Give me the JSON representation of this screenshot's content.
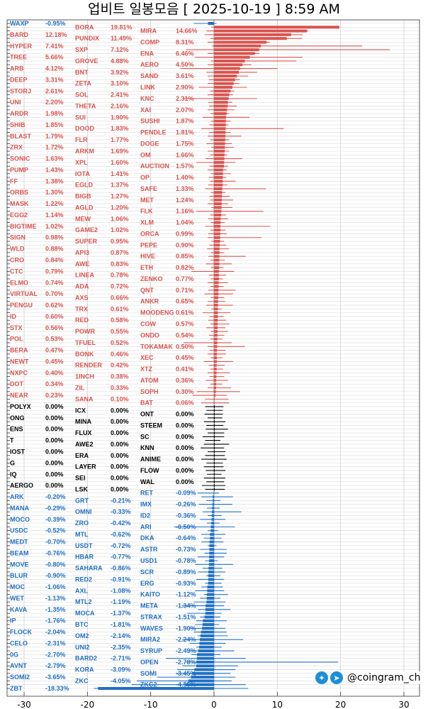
{
  "chart_data": {
    "type": "bar",
    "subtype": "horizontal-candle",
    "title": "업비트 일봉모음 [ 2025-10-19 ]  8:59 AM",
    "xlabel": "",
    "ylabel": "",
    "xlim": [
      -32,
      33
    ],
    "xticks": [
      -30,
      -20,
      -10,
      0,
      10,
      20,
      30
    ],
    "grid": true,
    "colors": {
      "up": "#d9534f",
      "flat": "#000000",
      "down": "#1f6fc5"
    },
    "columns": [
      "name",
      "change_pct",
      "low_pct",
      "high_pct"
    ],
    "rows": [
      [
        "WAXP",
        -0.95,
        -3.2,
        0.4
      ],
      [
        "BORA",
        19.81,
        -0.4,
        19.7
      ],
      [
        "MIRA",
        14.66,
        -1.2,
        14.9
      ],
      [
        "BARD",
        12.18,
        -1.5,
        14.0
      ],
      [
        "PUNDIX",
        11.49,
        -0.6,
        13.9
      ],
      [
        "COMP",
        8.31,
        -1.0,
        8.8
      ],
      [
        "HYPER",
        7.41,
        -0.3,
        23.4
      ],
      [
        "SXP",
        7.12,
        -4.4,
        27.8
      ],
      [
        "ENA",
        6.46,
        -1.0,
        7.2
      ],
      [
        "TREE",
        5.66,
        -3.0,
        14.0
      ],
      [
        "GROVE",
        4.88,
        -0.5,
        13.0
      ],
      [
        "AERO",
        4.5,
        -1.0,
        5.9
      ],
      [
        "ARB",
        4.12,
        -5.3,
        10.0
      ],
      [
        "BNT",
        3.92,
        -1.2,
        6.8
      ],
      [
        "SAND",
        3.61,
        -1.0,
        5.4
      ],
      [
        "DEEP",
        3.31,
        -0.8,
        4.1
      ],
      [
        "ZETA",
        3.1,
        -1.0,
        4.0
      ],
      [
        "LINK",
        2.9,
        -2.4,
        5.2
      ],
      [
        "STORJ",
        2.61,
        -0.6,
        3.2
      ],
      [
        "SOL",
        2.41,
        -1.0,
        3.0
      ],
      [
        "KNC",
        2.31,
        -4.8,
        6.8
      ],
      [
        "UNI",
        2.2,
        -0.9,
        2.9
      ],
      [
        "THETA",
        2.16,
        -0.8,
        3.6
      ],
      [
        "XAI",
        2.07,
        -1.0,
        3.2
      ],
      [
        "ARDR",
        1.98,
        -0.6,
        2.4
      ],
      [
        "SUI",
        1.9,
        -1.8,
        5.6
      ],
      [
        "SUSHI",
        1.87,
        -0.5,
        2.6
      ],
      [
        "SHIB",
        1.85,
        -0.7,
        2.3
      ],
      [
        "DOOD",
        1.83,
        -2.0,
        11.0
      ],
      [
        "PENDLE",
        1.81,
        -0.8,
        2.6
      ],
      [
        "BLAST",
        1.79,
        -1.0,
        4.3
      ],
      [
        "FLR",
        1.77,
        -0.6,
        2.4
      ],
      [
        "DOGE",
        1.75,
        -1.2,
        2.8
      ],
      [
        "ZRX",
        1.72,
        -0.4,
        3.1
      ],
      [
        "ARKM",
        1.69,
        -1.0,
        2.4
      ],
      [
        "OM",
        1.66,
        -0.6,
        2.1
      ],
      [
        "SONIC",
        1.63,
        -1.3,
        4.4
      ],
      [
        "XPL",
        1.6,
        -2.8,
        3.4
      ],
      [
        "AUCTION",
        1.57,
        -0.7,
        2.2
      ],
      [
        "PUMP",
        1.43,
        -1.0,
        2.0
      ],
      [
        "IOTA",
        1.41,
        -0.5,
        2.6
      ],
      [
        "OP",
        1.4,
        -0.8,
        1.9
      ],
      [
        "FF",
        1.38,
        -0.6,
        3.4
      ],
      [
        "EGLD",
        1.37,
        -0.9,
        2.1
      ],
      [
        "SAFE",
        1.33,
        -1.4,
        8.2
      ],
      [
        "ORBS",
        1.3,
        -0.5,
        1.8
      ],
      [
        "BIGB",
        1.27,
        -0.7,
        2.5
      ],
      [
        "MET",
        1.24,
        -0.6,
        3.0
      ],
      [
        "MASK",
        1.22,
        -1.0,
        2.2
      ],
      [
        "AGLD",
        1.2,
        -0.4,
        2.9
      ],
      [
        "FLK",
        1.16,
        -2.8,
        7.8
      ],
      [
        "EGG2",
        1.14,
        -0.6,
        1.9
      ],
      [
        "MEW",
        1.06,
        -0.9,
        2.2
      ],
      [
        "XLM",
        1.04,
        -0.5,
        1.7
      ],
      [
        "BIGTIME",
        1.02,
        -1.4,
        8.9
      ],
      [
        "GAME2",
        1.02,
        -0.6,
        1.8
      ],
      [
        "ORCA",
        0.99,
        -0.9,
        2.0
      ],
      [
        "SIGN",
        0.98,
        -1.0,
        7.5
      ],
      [
        "SUPER",
        0.95,
        -0.4,
        1.6
      ],
      [
        "PEPE",
        0.9,
        -0.7,
        1.9
      ],
      [
        "WLD",
        0.88,
        -1.1,
        2.4
      ],
      [
        "API3",
        0.87,
        -0.5,
        1.6
      ],
      [
        "HIVE",
        0.85,
        -0.9,
        5.0
      ],
      [
        "CRO",
        0.84,
        -0.6,
        1.7
      ],
      [
        "AWE",
        0.83,
        -1.3,
        2.8
      ],
      [
        "ETH",
        0.82,
        -0.5,
        1.5
      ],
      [
        "CTC",
        0.79,
        -3.6,
        3.2
      ],
      [
        "LINEA",
        0.78,
        -0.8,
        1.9
      ],
      [
        "ZENKO",
        0.77,
        -0.5,
        1.4
      ],
      [
        "ELMO",
        0.74,
        -1.0,
        2.2
      ],
      [
        "ADA",
        0.72,
        -0.6,
        1.5
      ],
      [
        "QNT",
        0.71,
        -0.9,
        3.4
      ],
      [
        "VIRTUAL",
        0.7,
        -1.5,
        3.0
      ],
      [
        "AXS",
        0.66,
        -0.5,
        1.6
      ],
      [
        "ANKR",
        0.65,
        -1.0,
        1.8
      ],
      [
        "PENGU",
        0.62,
        -1.2,
        3.0
      ],
      [
        "TRX",
        0.61,
        -0.4,
        1.2
      ],
      [
        "MOODENG",
        0.61,
        -1.8,
        2.6
      ],
      [
        "ID",
        0.6,
        -0.7,
        1.5
      ],
      [
        "RED",
        0.58,
        -0.9,
        1.9
      ],
      [
        "COW",
        0.57,
        -0.6,
        2.4
      ],
      [
        "STX",
        0.56,
        -1.2,
        1.8
      ],
      [
        "POWR",
        0.55,
        -0.5,
        2.2
      ],
      [
        "ONDO",
        0.54,
        -0.8,
        1.6
      ],
      [
        "POL",
        0.53,
        -0.6,
        1.3
      ],
      [
        "TFUEL",
        0.52,
        -4.8,
        2.8
      ],
      [
        "TOKAMAK",
        0.5,
        -1.0,
        4.9
      ],
      [
        "BERA",
        0.47,
        -0.7,
        1.8
      ],
      [
        "BONK",
        0.46,
        -1.0,
        1.9
      ],
      [
        "XEC",
        0.45,
        -0.5,
        1.3
      ],
      [
        "NEWT",
        0.45,
        -1.6,
        3.0
      ],
      [
        "RENDER",
        0.42,
        -0.8,
        1.7
      ],
      [
        "XTZ",
        0.41,
        -0.6,
        1.4
      ],
      [
        "NXPC",
        0.4,
        -1.0,
        2.5
      ],
      [
        "1INCH",
        0.38,
        -0.7,
        1.6
      ],
      [
        "ATOM",
        0.36,
        -1.3,
        2.2
      ],
      [
        "DOT",
        0.34,
        -0.6,
        1.3
      ],
      [
        "ZIL",
        0.33,
        -1.0,
        2.7
      ],
      [
        "SOPH",
        0.3,
        -2.7,
        4.1
      ],
      [
        "NEAR",
        0.23,
        -3.4,
        2.0
      ],
      [
        "SANA",
        0.1,
        -1.4,
        2.3
      ],
      [
        "BAT",
        0.06,
        -2.0,
        2.4
      ],
      [
        "POLYX",
        0.0,
        -1.4,
        1.5
      ],
      [
        "ICX",
        0.0,
        -1.2,
        1.4
      ],
      [
        "ONT",
        0.0,
        -1.5,
        1.4
      ],
      [
        "ONG",
        0.0,
        -1.0,
        1.3
      ],
      [
        "MINA",
        0.0,
        -1.6,
        1.8
      ],
      [
        "STEEM",
        0.0,
        -1.2,
        1.5
      ],
      [
        "ENS",
        0.0,
        -1.3,
        2.2
      ],
      [
        "FLUX",
        0.0,
        -1.0,
        1.6
      ],
      [
        "SC",
        0.0,
        -1.8,
        1.6
      ],
      [
        "T",
        0.0,
        -1.4,
        1.0
      ],
      [
        "AWE2",
        0.0,
        -1.6,
        2.4
      ],
      [
        "KNN",
        0.0,
        -2.1,
        1.6
      ],
      [
        "IOST",
        0.0,
        -1.0,
        1.8
      ],
      [
        "ERA",
        0.0,
        -1.4,
        1.7
      ],
      [
        "ANIME",
        0.0,
        -2.0,
        2.0
      ],
      [
        "G",
        0.0,
        -1.2,
        1.4
      ],
      [
        "LAYER",
        0.0,
        -1.6,
        1.5
      ],
      [
        "FLOW",
        0.0,
        -1.3,
        1.8
      ],
      [
        "IQ",
        0.0,
        -1.1,
        1.2
      ],
      [
        "SEI",
        0.0,
        -1.6,
        1.8
      ],
      [
        "WAL",
        0.0,
        -1.2,
        1.6
      ],
      [
        "AERGO",
        0.0,
        -1.9,
        1.8
      ],
      [
        "LSK",
        0.0,
        -1.4,
        1.7
      ],
      [
        "RET",
        -0.09,
        -2.6,
        0.8
      ],
      [
        "ARK",
        -0.2,
        -2.0,
        3.0
      ],
      [
        "GRT",
        -0.21,
        -1.2,
        1.0
      ],
      [
        "IMX",
        -0.26,
        -2.4,
        2.9
      ],
      [
        "MANA",
        -0.29,
        -1.1,
        0.9
      ],
      [
        "OMNI",
        -0.33,
        -1.8,
        4.3
      ],
      [
        "ID2",
        -0.36,
        -1.0,
        1.2
      ],
      [
        "MOCO",
        -0.39,
        -2.2,
        1.8
      ],
      [
        "ZRO",
        -0.42,
        -1.1,
        0.9
      ],
      [
        "ARI",
        -0.5,
        -6.3,
        3.3
      ],
      [
        "USDC",
        -0.52,
        -1.0,
        0.6
      ],
      [
        "MTL",
        -0.62,
        -2.0,
        1.8
      ],
      [
        "DKA",
        -0.64,
        -1.6,
        1.2
      ],
      [
        "MEDT",
        -0.7,
        -2.0,
        1.5
      ],
      [
        "USDT",
        -0.72,
        -1.0,
        0.4
      ],
      [
        "ASTR",
        -0.73,
        -2.2,
        2.0
      ],
      [
        "BEAM",
        -0.76,
        -1.5,
        2.0
      ],
      [
        "HBAR",
        -0.77,
        -2.6,
        1.6
      ],
      [
        "USD1",
        -0.78,
        -1.4,
        0.6
      ],
      [
        "MOVE",
        -0.8,
        -3.0,
        3.0
      ],
      [
        "SAHARA",
        -0.86,
        -1.8,
        1.3
      ],
      [
        "SCR",
        -0.89,
        -2.5,
        1.8
      ],
      [
        "BLUR",
        -0.9,
        -1.2,
        1.0
      ],
      [
        "RED2",
        -0.91,
        -2.8,
        1.6
      ],
      [
        "ERG",
        -0.93,
        -1.4,
        1.2
      ],
      [
        "MOC",
        -1.06,
        -2.0,
        1.4
      ],
      [
        "AXL",
        -1.08,
        -3.0,
        1.6
      ],
      [
        "KAITO",
        -1.12,
        -1.6,
        2.2
      ],
      [
        "WET",
        -1.13,
        -2.2,
        1.0
      ],
      [
        "MTL2",
        -1.19,
        -3.2,
        1.8
      ],
      [
        "META",
        -1.34,
        -5.0,
        1.6
      ],
      [
        "KAVA",
        -1.35,
        -2.5,
        2.6
      ],
      [
        "MOCA",
        -1.37,
        -4.2,
        1.2
      ],
      [
        "STRAX",
        -1.51,
        -2.2,
        1.0
      ],
      [
        "IP",
        -1.76,
        -2.8,
        2.0
      ],
      [
        "BTC",
        -1.81,
        -3.0,
        0.8
      ],
      [
        "WAVES",
        -1.9,
        -4.0,
        1.8
      ],
      [
        "FLOCK",
        -2.04,
        -3.2,
        2.0
      ],
      [
        "OM2",
        -2.14,
        -2.6,
        2.2
      ],
      [
        "MIRA2",
        -2.24,
        -5.0,
        4.6
      ],
      [
        "CELO",
        -2.31,
        -3.8,
        1.8
      ],
      [
        "UNI2",
        -2.35,
        -2.8,
        1.2
      ],
      [
        "SYRUP",
        -2.49,
        -4.2,
        3.2
      ],
      [
        "0G",
        -2.7,
        -3.6,
        1.0
      ],
      [
        "BARD2",
        -2.71,
        -7.6,
        5.0
      ],
      [
        "OPEN",
        -2.78,
        -4.4,
        19.6
      ],
      [
        "AVNT",
        -2.79,
        -5.0,
        3.8
      ],
      [
        "KORA",
        -3.09,
        -5.8,
        3.4
      ],
      [
        "SOMI",
        -3.45,
        -6.0,
        2.6
      ],
      [
        "SOMI2",
        -3.65,
        -9.0,
        3.4
      ],
      [
        "ZKC",
        -4.05,
        -12.2,
        2.8
      ],
      [
        "ZKC2",
        -4.55,
        -13.0,
        5.0
      ],
      [
        "ZBT",
        -18.33,
        -19.0,
        5.4
      ]
    ]
  },
  "watermark": {
    "handle": "@coingram_ch",
    "icons": [
      "twitter-icon",
      "telegram-icon"
    ]
  }
}
